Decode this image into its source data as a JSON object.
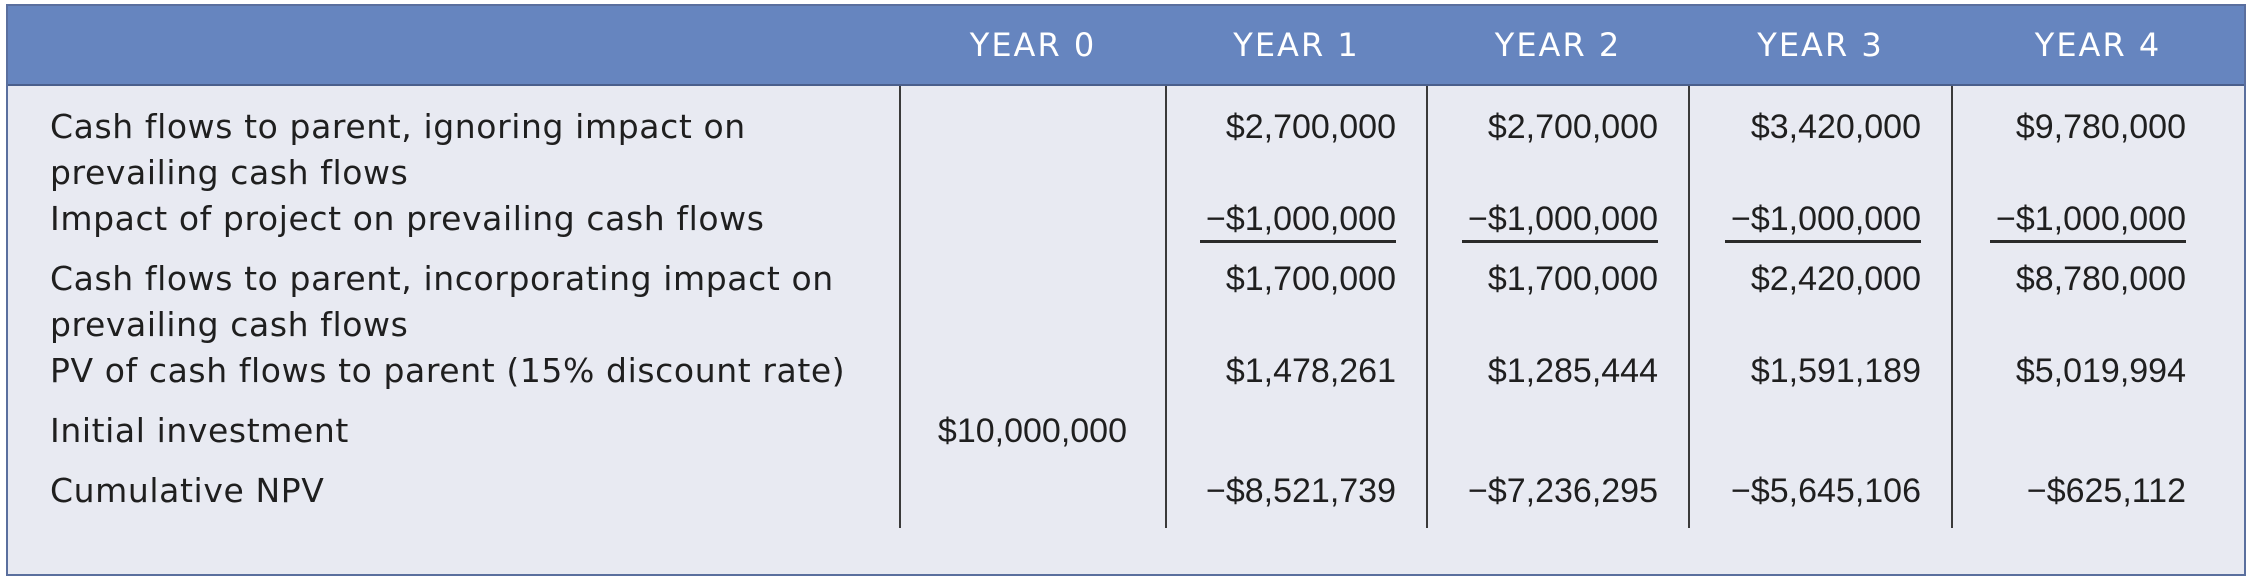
{
  "table": {
    "headers": [
      "",
      "YEAR 0",
      "YEAR 1",
      "YEAR 2",
      "YEAR 3",
      "YEAR 4"
    ],
    "rows": [
      {
        "label": "Cash flows to parent, ignoring impact on prevailing cash flows",
        "label_line1": "Cash flows to parent, ignoring impact on",
        "label_line2": "prevailing cash flows",
        "values": [
          "",
          "$2,700,000",
          "$2,700,000",
          "$3,420,000",
          "$9,780,000"
        ]
      },
      {
        "label": "Impact of project on prevailing cash flows",
        "values": [
          "",
          "−$1,000,000",
          "−$1,000,000",
          "−$1,000,000",
          "−$1,000,000"
        ],
        "underlined": true
      },
      {
        "label": "Cash flows to parent, incorporating impact on prevailing cash flows",
        "label_line1": "Cash flows to parent, incorporating impact on",
        "label_line2": "prevailing cash flows",
        "values": [
          "",
          "$1,700,000",
          "$1,700,000",
          "$2,420,000",
          "$8,780,000"
        ]
      },
      {
        "label": "PV of cash flows to parent (15% discount rate)",
        "values": [
          "",
          "$1,478,261",
          "$1,285,444",
          "$1,591,189",
          "$5,019,994"
        ]
      },
      {
        "label": "Initial investment",
        "values": [
          "$10,000,000",
          "",
          "",
          "",
          ""
        ]
      },
      {
        "label": "Cumulative NPV",
        "values": [
          "",
          "−$8,521,739",
          "−$7,236,295",
          "−$5,645,106",
          "−$625,112"
        ]
      }
    ]
  },
  "colors": {
    "header_bg": "#6685bf",
    "header_text": "#ffffff",
    "body_bg": "#e8eaf2",
    "text": "#1f1f1f",
    "rule": "#3a3a3a"
  }
}
